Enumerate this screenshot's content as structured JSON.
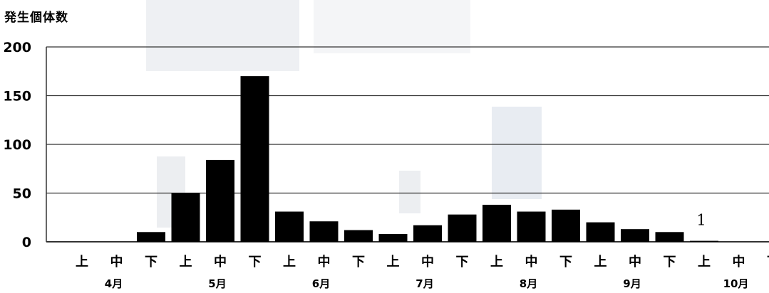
{
  "chart_data": {
    "type": "bar",
    "title": "発生個体数",
    "ylim": [
      0,
      200
    ],
    "yticks": [
      "0",
      "50",
      "100",
      "150",
      "200"
    ],
    "grid": true,
    "legend": "none",
    "bar_color": "#000000",
    "categories": [
      "上",
      "中",
      "下",
      "上",
      "中",
      "下",
      "上",
      "中",
      "下",
      "上",
      "中",
      "下",
      "上",
      "中",
      "下",
      "上",
      "中",
      "下",
      "上",
      "中",
      "下"
    ],
    "months": [
      "4月",
      "5月",
      "6月",
      "7月",
      "8月",
      "9月",
      "10月"
    ],
    "values": [
      0,
      0,
      10,
      50,
      84,
      170,
      31,
      21,
      12,
      8,
      17,
      28,
      38,
      31,
      33,
      20,
      13,
      10,
      1,
      0,
      0
    ],
    "annotations": [
      {
        "category_index": 18,
        "text": "1"
      }
    ]
  }
}
